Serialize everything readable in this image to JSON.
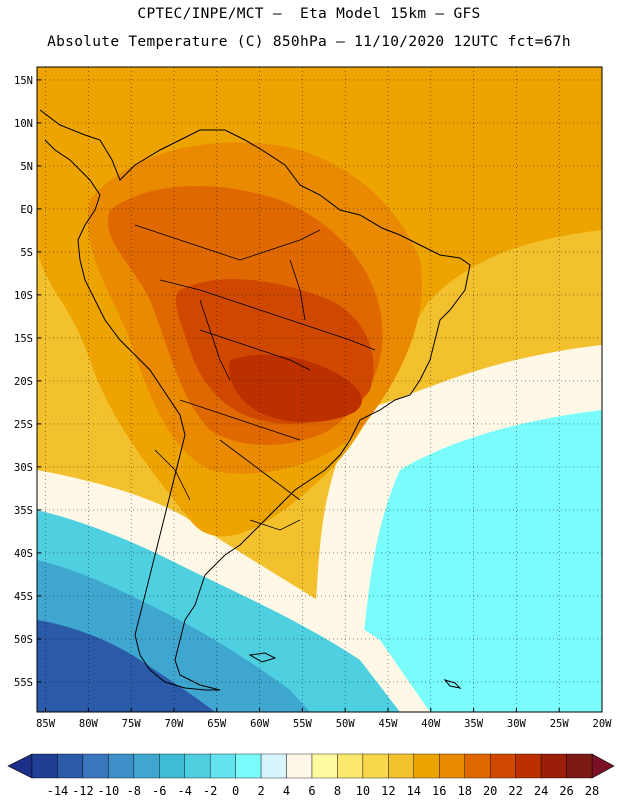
{
  "header": {
    "line1": "CPTEC/INPE/MCT –  Eta Model 15km – GFS",
    "line2": "Absolute Temperature (C) 850hPa – 11/10/2020 12UTC fct=67h"
  },
  "axes": {
    "lat_labels": [
      "15N",
      "10N",
      "5N",
      "EQ",
      "5S",
      "10S",
      "15S",
      "20S",
      "25S",
      "30S",
      "35S",
      "40S",
      "45S",
      "50S",
      "55S"
    ],
    "lat_values": [
      15,
      10,
      5,
      0,
      -5,
      -10,
      -15,
      -20,
      -25,
      -30,
      -35,
      -40,
      -45,
      -50,
      -55
    ],
    "lon_labels": [
      "85W",
      "80W",
      "75W",
      "70W",
      "65W",
      "60W",
      "55W",
      "50W",
      "45W",
      "40W",
      "35W",
      "30W",
      "25W",
      "20W"
    ],
    "lon_values": [
      -85,
      -80,
      -75,
      -70,
      -65,
      -60,
      -55,
      -50,
      -45,
      -40,
      -35,
      -30,
      -25,
      -20
    ],
    "lat_range": [
      -58.5,
      16.5
    ],
    "lon_range": [
      -86,
      -20
    ]
  },
  "colorbar": {
    "labels": [
      "-14",
      "-12",
      "-10",
      "-8",
      "-6",
      "-4",
      "-2",
      "0",
      "2",
      "4",
      "6",
      "8",
      "10",
      "12",
      "14",
      "16",
      "18",
      "20",
      "22",
      "24",
      "26",
      "28"
    ],
    "colors": [
      "#1f3f94",
      "#2a5aa8",
      "#3a76bc",
      "#3f8fc8",
      "#3fa7cf",
      "#3fbcd4",
      "#4fd0e0",
      "#63e3ef",
      "#7afcfc",
      "#d8f4fc",
      "#fff8e6",
      "#fff9a0",
      "#fce96c",
      "#f8d84a",
      "#f3c12e",
      "#eda400",
      "#e98a00",
      "#e06800",
      "#d04800",
      "#bc3000",
      "#9a1e08",
      "#7a1a12"
    ],
    "under_color": "#1c2f88",
    "over_color": "#7a0f26"
  }
}
